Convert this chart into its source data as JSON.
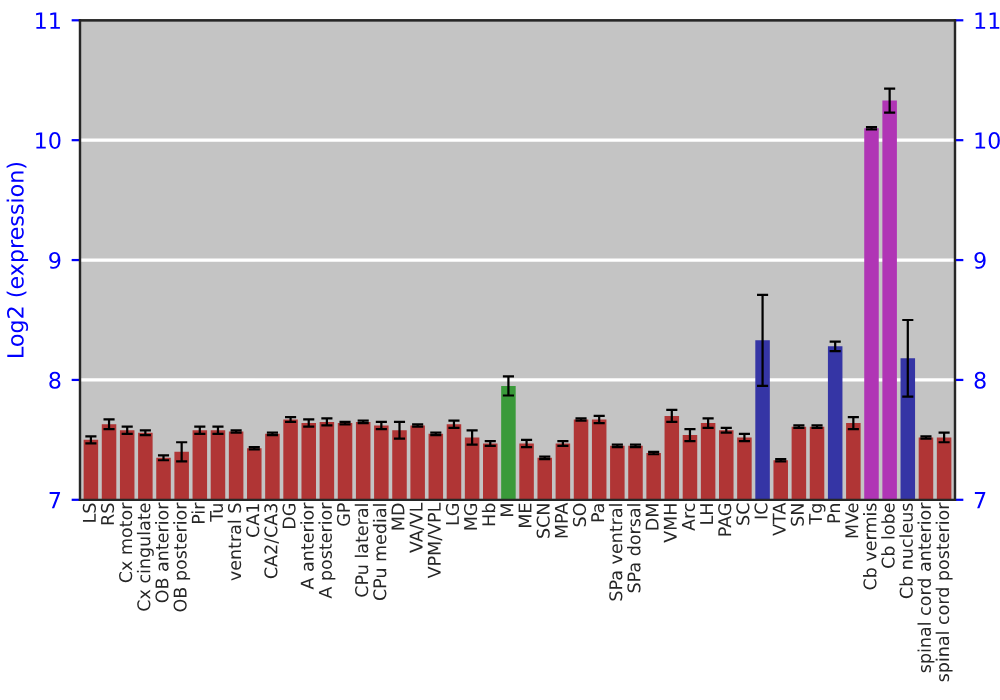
{
  "chart_data": {
    "type": "bar",
    "ylabel": "Log2 (expression)",
    "categories": [
      "LS",
      "RS",
      "Cx motor",
      "Cx cingulate",
      "OB anterior",
      "OB posterior",
      "Pir",
      "Tu",
      "ventral S",
      "CA1",
      "CA2/CA3",
      "DG",
      "A anterior",
      "A posterior",
      "GP",
      "CPu lateral",
      "CPu medial",
      "MD",
      "VA/VL",
      "VPM/VPL",
      "LG",
      "MG",
      "Hb",
      "M",
      "ME",
      "SCN",
      "MPA",
      "SO",
      "Pa",
      "SPa ventral",
      "SPa dorsal",
      "DM",
      "VMH",
      "Arc",
      "LH",
      "PAG",
      "SC",
      "IC",
      "VTA",
      "SN",
      "Tg",
      "Pn",
      "MVe",
      "Cb vermis",
      "Cb lobe",
      "Cb nucleus",
      "spinal cord anterior",
      "spinal cord posterior"
    ],
    "values": [
      7.5,
      7.63,
      7.58,
      7.56,
      7.35,
      7.4,
      7.58,
      7.58,
      7.57,
      7.43,
      7.55,
      7.67,
      7.64,
      7.65,
      7.64,
      7.65,
      7.62,
      7.58,
      7.62,
      7.55,
      7.63,
      7.52,
      7.47,
      7.95,
      7.47,
      7.35,
      7.47,
      7.67,
      7.67,
      7.45,
      7.45,
      7.39,
      7.7,
      7.54,
      7.64,
      7.58,
      7.52,
      8.33,
      7.33,
      7.61,
      7.61,
      8.28,
      7.64,
      10.1,
      10.33,
      8.18,
      7.52,
      7.52
    ],
    "errors": [
      0.03,
      0.04,
      0.03,
      0.02,
      0.02,
      0.08,
      0.03,
      0.03,
      0.01,
      0.01,
      0.01,
      0.02,
      0.03,
      0.03,
      0.01,
      0.01,
      0.03,
      0.07,
      0.01,
      0.01,
      0.03,
      0.06,
      0.02,
      0.08,
      0.03,
      0.01,
      0.02,
      0.01,
      0.03,
      0.01,
      0.01,
      0.01,
      0.05,
      0.05,
      0.04,
      0.02,
      0.03,
      0.38,
      0.01,
      0.01,
      0.01,
      0.04,
      0.05,
      0.01,
      0.1,
      0.32,
      0.01,
      0.04
    ],
    "colors": [
      "#b03535",
      "#b03535",
      "#b03535",
      "#b03535",
      "#b03535",
      "#b03535",
      "#b03535",
      "#b03535",
      "#b03535",
      "#b03535",
      "#b03535",
      "#b03535",
      "#b03535",
      "#b03535",
      "#b03535",
      "#b03535",
      "#b03535",
      "#b03535",
      "#b03535",
      "#b03535",
      "#b03535",
      "#b03535",
      "#b03535",
      "#3a9a3a",
      "#b03535",
      "#b03535",
      "#b03535",
      "#b03535",
      "#b03535",
      "#b03535",
      "#b03535",
      "#b03535",
      "#b03535",
      "#b03535",
      "#b03535",
      "#b03535",
      "#b03535",
      "#3535a5",
      "#b03535",
      "#b03535",
      "#b03535",
      "#3535a5",
      "#b03535",
      "#b035b5",
      "#b035b5",
      "#3535a5",
      "#b03535",
      "#b03535"
    ],
    "ylim": [
      7,
      11
    ],
    "yticks": [
      7,
      8,
      9,
      10,
      11
    ],
    "y2lim": [
      7,
      11
    ],
    "y2ticks": [
      7,
      8,
      9,
      10,
      11
    ],
    "grid": "y",
    "legend": false
  }
}
